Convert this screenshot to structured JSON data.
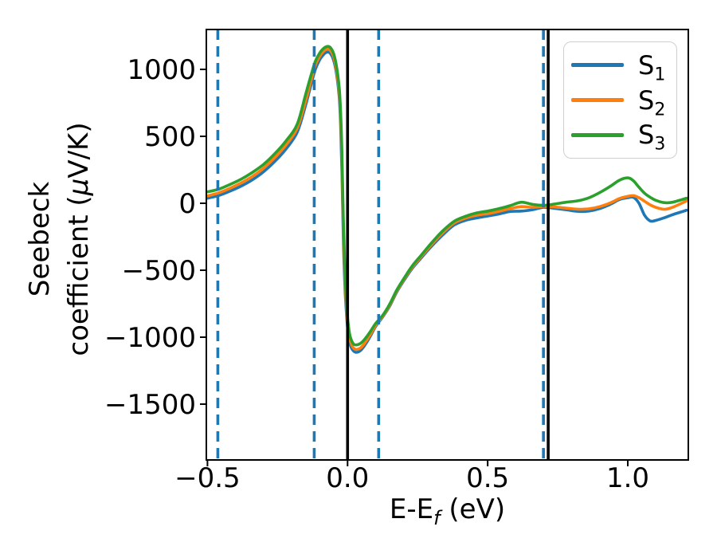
{
  "figure": {
    "background": "#ffffff"
  },
  "chart_data": {
    "type": "line",
    "title": "",
    "xlabel": {
      "prefix": "E-E",
      "sub": "f",
      "suffix": " (eV)"
    },
    "ylabel": {
      "line1": "Seebeck",
      "line2_pre": "coefficient (",
      "line2_mu": "μ",
      "line2_post": "V/K)"
    },
    "xlim": [
      -0.504,
      1.216
    ],
    "ylim": [
      -1917,
      1298
    ],
    "grid": false,
    "x_ticks": {
      "values": [
        -0.5,
        0.0,
        0.5,
        1.0
      ],
      "labels": [
        "−0.5",
        "0.0",
        "0.5",
        "1.0"
      ]
    },
    "y_ticks": {
      "values": [
        1000,
        500,
        0,
        -500,
        -1000,
        -1500
      ],
      "labels": [
        "1000",
        "500",
        "0",
        "−500",
        "−1000",
        "−1500"
      ]
    },
    "vlines_dashed": {
      "style": "dashed",
      "color": "#1f77b4",
      "x": [
        -0.463,
        -0.119,
        0.111,
        0.699
      ]
    },
    "vlines_solid": {
      "style": "solid",
      "color": "#000000",
      "x": [
        0.0,
        0.716
      ]
    },
    "legend": {
      "position": "upper right"
    },
    "x": [
      -0.5,
      -0.46,
      -0.42,
      -0.38,
      -0.34,
      -0.3,
      -0.26,
      -0.22,
      -0.18,
      -0.15,
      -0.13,
      -0.115,
      -0.1,
      -0.09,
      -0.08,
      -0.07,
      -0.06,
      -0.05,
      -0.04,
      -0.03,
      -0.025,
      -0.02,
      -0.015,
      -0.01,
      -0.005,
      0.0,
      0.005,
      0.01,
      0.02,
      0.03,
      0.045,
      0.06,
      0.08,
      0.1,
      0.125,
      0.15,
      0.175,
      0.2,
      0.23,
      0.26,
      0.3,
      0.34,
      0.38,
      0.42,
      0.46,
      0.5,
      0.54,
      0.58,
      0.62,
      0.66,
      0.7,
      0.74,
      0.78,
      0.82,
      0.86,
      0.9,
      0.94,
      0.97,
      1.0,
      1.02,
      1.04,
      1.06,
      1.08,
      1.1,
      1.13,
      1.16,
      1.21
    ],
    "series": [
      {
        "id": "s1",
        "label_base": "S",
        "label_sub": "1",
        "color": "#1f77b4",
        "values": [
          38,
          58,
          90,
          128,
          175,
          235,
          312,
          405,
          530,
          730,
          890,
          1000,
          1070,
          1100,
          1122,
          1130,
          1115,
          1070,
          975,
          800,
          590,
          230,
          -280,
          -600,
          -790,
          -930,
          -1010,
          -1060,
          -1100,
          -1113,
          -1102,
          -1065,
          -998,
          -920,
          -850,
          -770,
          -665,
          -580,
          -488,
          -415,
          -320,
          -235,
          -163,
          -128,
          -110,
          -95,
          -80,
          -62,
          -58,
          -48,
          -30,
          -38,
          -48,
          -60,
          -58,
          -40,
          -5,
          28,
          42,
          45,
          0,
          -90,
          -132,
          -128,
          -108,
          -85,
          -52
        ]
      },
      {
        "id": "s2",
        "label_base": "S",
        "label_sub": "2",
        "color": "#ff7f0e",
        "values": [
          55,
          78,
          112,
          152,
          200,
          262,
          340,
          435,
          560,
          760,
          920,
          1030,
          1095,
          1125,
          1145,
          1152,
          1138,
          1095,
          1000,
          835,
          640,
          300,
          -200,
          -540,
          -745,
          -895,
          -980,
          -1030,
          -1078,
          -1092,
          -1082,
          -1048,
          -985,
          -912,
          -845,
          -763,
          -658,
          -572,
          -480,
          -405,
          -308,
          -220,
          -148,
          -112,
          -88,
          -78,
          -60,
          -40,
          -25,
          -30,
          -24,
          -28,
          -36,
          -44,
          -42,
          -25,
          5,
          35,
          52,
          57,
          42,
          15,
          -12,
          -30,
          -45,
          -30,
          18
        ]
      },
      {
        "id": "s3",
        "label_base": "S",
        "label_sub": "3",
        "color": "#2ca02c",
        "values": [
          85,
          105,
          140,
          180,
          230,
          290,
          370,
          465,
          590,
          810,
          960,
          1060,
          1120,
          1148,
          1165,
          1172,
          1160,
          1120,
          1030,
          870,
          690,
          380,
          -120,
          -480,
          -700,
          -855,
          -945,
          -1000,
          -1048,
          -1058,
          -1048,
          -1018,
          -962,
          -898,
          -838,
          -755,
          -650,
          -565,
          -470,
          -395,
          -295,
          -205,
          -135,
          -98,
          -72,
          -58,
          -40,
          -18,
          8,
          -8,
          -15,
          -5,
          8,
          18,
          40,
          80,
          130,
          172,
          190,
          168,
          120,
          75,
          45,
          22,
          5,
          8,
          38
        ]
      }
    ]
  }
}
